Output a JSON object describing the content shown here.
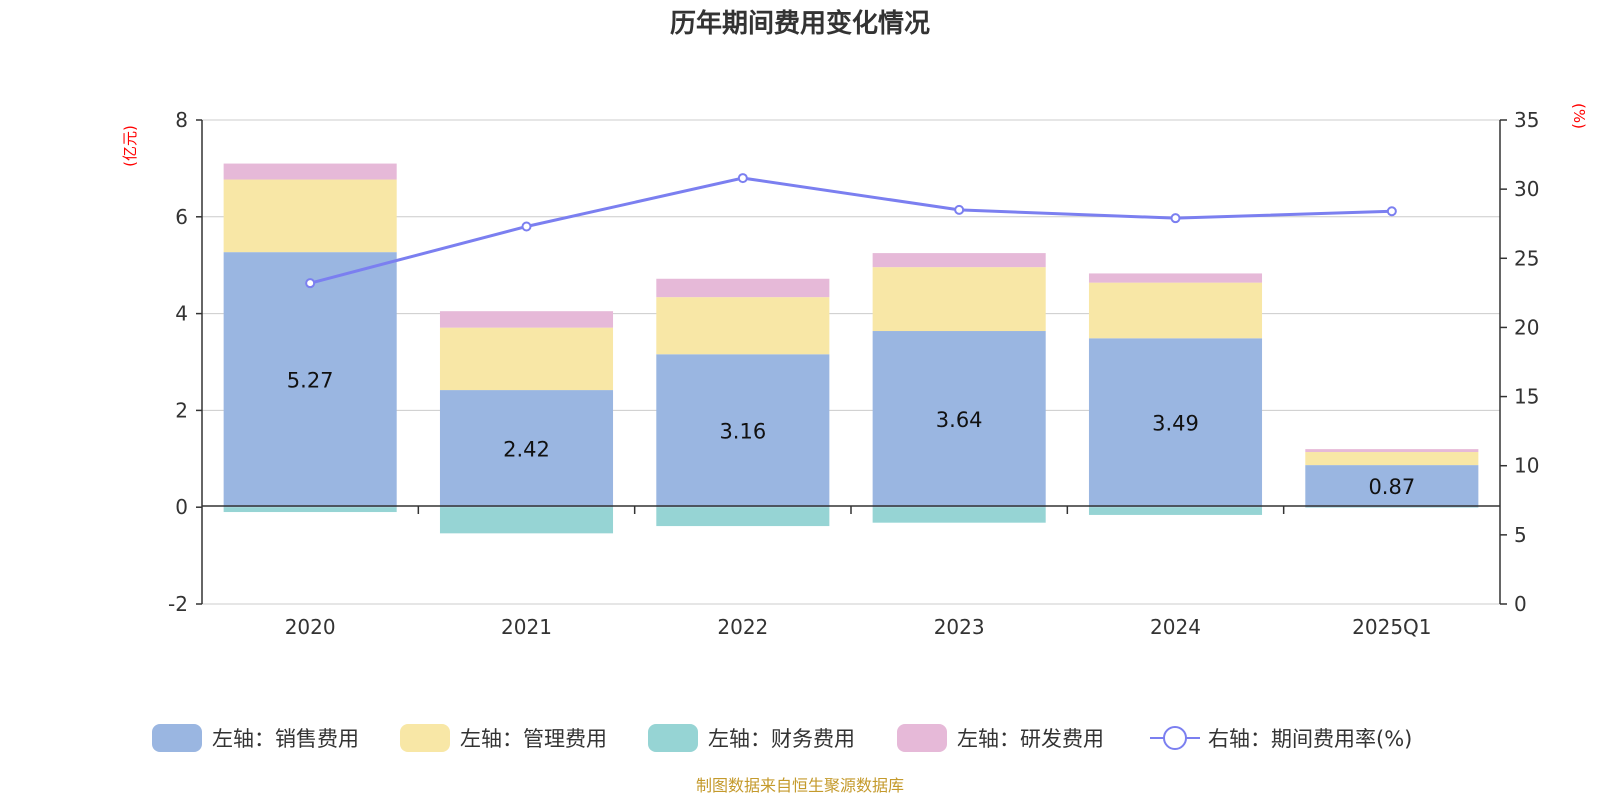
{
  "colors": {
    "sales": "#9ab6e1",
    "admin": "#f8e7a6",
    "finance": "#96d4d4",
    "rd": "#e6b9d8",
    "rate": "#7b7ff0",
    "unit": "#ff0000",
    "source": "#c49a2c"
  },
  "chart_data": {
    "type": "bar",
    "title": "历年期间费用变化情况",
    "categories": [
      "2020",
      "2021",
      "2022",
      "2023",
      "2024",
      "2025Q1"
    ],
    "left_axis": {
      "unit": "(亿元)",
      "ylim": [
        -2,
        8
      ],
      "ticks": [
        -2,
        0,
        2,
        4,
        6,
        8
      ]
    },
    "right_axis": {
      "unit": "(%)",
      "ylim": [
        0,
        35
      ],
      "ticks": [
        0,
        5,
        10,
        15,
        20,
        25,
        30,
        35
      ]
    },
    "grid": true,
    "legend_position": "bottom",
    "series": [
      {
        "key": "sales",
        "name": "左轴：销售费用",
        "axis": "left",
        "kind": "bar",
        "values": [
          5.27,
          2.42,
          3.16,
          3.64,
          3.49,
          0.87
        ],
        "labels": [
          "5.27",
          "2.42",
          "3.16",
          "3.64",
          "3.49",
          "0.87"
        ]
      },
      {
        "key": "admin",
        "name": "左轴：管理费用",
        "axis": "left",
        "kind": "bar",
        "values": [
          1.5,
          1.29,
          1.18,
          1.32,
          1.15,
          0.27
        ]
      },
      {
        "key": "finance",
        "name": "左轴：财务费用",
        "axis": "left",
        "kind": "bar",
        "values": [
          -0.1,
          -0.54,
          -0.39,
          -0.32,
          -0.16,
          -0.01
        ]
      },
      {
        "key": "rd",
        "name": "左轴：研发费用",
        "axis": "left",
        "kind": "bar",
        "values": [
          0.33,
          0.34,
          0.38,
          0.29,
          0.19,
          0.06
        ]
      },
      {
        "key": "rate",
        "name": "右轴：期间费用率(%)",
        "axis": "right",
        "kind": "line",
        "values": [
          23.2,
          27.3,
          30.8,
          28.5,
          27.9,
          28.4
        ]
      }
    ]
  },
  "source_note": "制图数据来自恒生聚源数据库"
}
